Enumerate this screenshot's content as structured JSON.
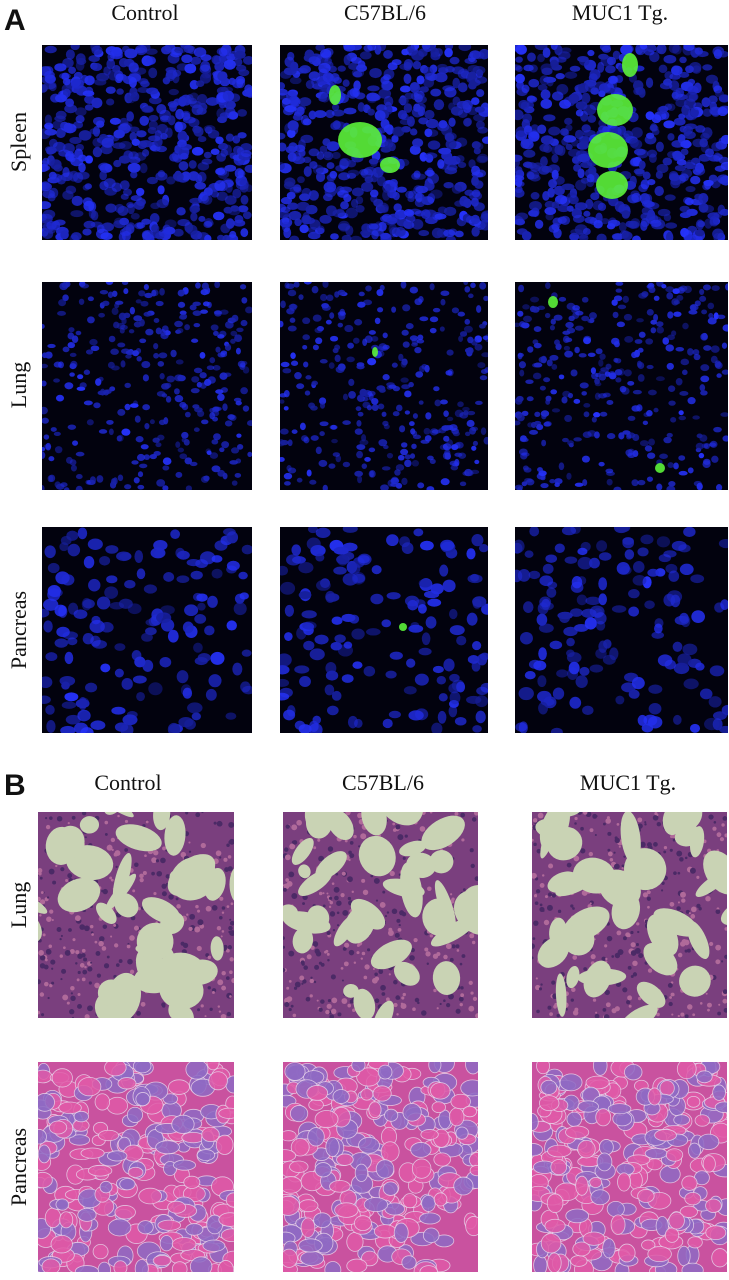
{
  "panels": [
    {
      "label": "A",
      "columns": [
        "Control",
        "C57BL/6",
        "MUC1 Tg."
      ],
      "rows": [
        "Spleen",
        "Lung",
        "Pancreas"
      ]
    },
    {
      "label": "B",
      "columns": [
        "Control",
        "C57BL/6",
        "MUC1 Tg."
      ],
      "rows": [
        "Lung",
        "Pancreas"
      ]
    }
  ]
}
